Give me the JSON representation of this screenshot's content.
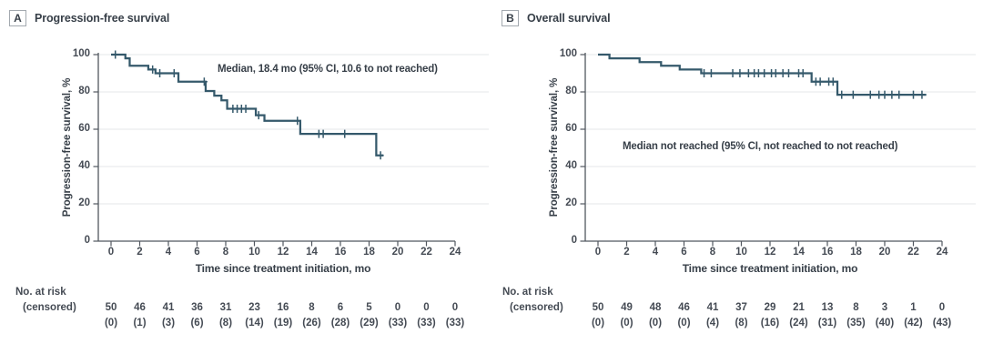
{
  "figure": {
    "background": "#ffffff",
    "curve_color": "#35596b",
    "axis_color": "#51575f",
    "grid_color": "#eaecee",
    "text_color": "#373f48",
    "risk_header_line1": "No. at risk",
    "risk_header_line2": "(censored)"
  },
  "chart_data": [
    {
      "type": "line",
      "subtype": "kaplan-meier-step",
      "panel_label": "A",
      "title": "Progression-free survival",
      "annotation": "Median, 18.4 mo (95% CI, 10.6 to not reached)",
      "xlabel": "Time since treatment initiation, mo",
      "ylabel": "Progression-free survival, %",
      "xlim": [
        0,
        24
      ],
      "ylim": [
        0,
        100
      ],
      "xticks": [
        0,
        2,
        4,
        6,
        8,
        10,
        12,
        14,
        16,
        18,
        20,
        22,
        24
      ],
      "yticks": [
        0,
        20,
        40,
        60,
        80,
        100
      ],
      "grid": "horizontal",
      "steps": [
        [
          0,
          100
        ],
        [
          1.0,
          98
        ],
        [
          1.3,
          94
        ],
        [
          2.6,
          92
        ],
        [
          3.1,
          90
        ],
        [
          4.7,
          85.5
        ],
        [
          6.6,
          80.5
        ],
        [
          7.2,
          78
        ],
        [
          7.7,
          75.5
        ],
        [
          8.1,
          71
        ],
        [
          10.1,
          67.5
        ],
        [
          10.7,
          64.5
        ],
        [
          13.2,
          57.5
        ],
        [
          18.5,
          46
        ]
      ],
      "curve_end": 19.0,
      "censor_marks": [
        [
          0.3,
          100
        ],
        [
          2.9,
          92
        ],
        [
          3.4,
          90
        ],
        [
          4.4,
          90
        ],
        [
          6.5,
          85.5
        ],
        [
          8.5,
          71
        ],
        [
          8.8,
          71
        ],
        [
          9.1,
          71
        ],
        [
          9.4,
          71
        ],
        [
          10.3,
          67.5
        ],
        [
          13.0,
          64.5
        ],
        [
          14.5,
          57.5
        ],
        [
          14.8,
          57.5
        ],
        [
          16.3,
          57.5
        ],
        [
          18.8,
          46
        ]
      ],
      "at_risk": [
        50,
        46,
        41,
        36,
        31,
        23,
        16,
        8,
        6,
        5,
        0,
        0,
        0
      ],
      "censored": [
        "(0)",
        "(1)",
        "(3)",
        "(6)",
        "(8)",
        "(14)",
        "(19)",
        "(26)",
        "(28)",
        "(29)",
        "(33)",
        "(33)",
        "(33)"
      ]
    },
    {
      "type": "line",
      "subtype": "kaplan-meier-step",
      "panel_label": "B",
      "title": "Overall survival",
      "annotation": "Median not reached (95% CI, not reached to not reached)",
      "xlabel": "Time since treatment initiation, mo",
      "ylabel": "Progression-free survival, %",
      "xlim": [
        0,
        24
      ],
      "ylim": [
        0,
        100
      ],
      "xticks": [
        0,
        2,
        4,
        6,
        8,
        10,
        12,
        14,
        16,
        18,
        20,
        22,
        24
      ],
      "yticks": [
        0,
        20,
        40,
        60,
        80,
        100
      ],
      "grid": "horizontal",
      "steps": [
        [
          0,
          100
        ],
        [
          0.8,
          98
        ],
        [
          2.9,
          96
        ],
        [
          4.4,
          94
        ],
        [
          5.7,
          92
        ],
        [
          7.2,
          90
        ],
        [
          14.9,
          85.5
        ],
        [
          16.7,
          78.5
        ]
      ],
      "curve_end": 22.9,
      "censor_marks": [
        [
          7.4,
          90
        ],
        [
          7.9,
          90
        ],
        [
          9.4,
          90
        ],
        [
          9.9,
          90
        ],
        [
          10.5,
          90
        ],
        [
          10.9,
          90
        ],
        [
          11.2,
          90
        ],
        [
          11.6,
          90
        ],
        [
          12.1,
          90
        ],
        [
          12.4,
          90
        ],
        [
          12.9,
          90
        ],
        [
          13.3,
          90
        ],
        [
          14.0,
          90
        ],
        [
          14.3,
          90
        ],
        [
          15.2,
          85.5
        ],
        [
          15.5,
          85.5
        ],
        [
          16.1,
          85.5
        ],
        [
          16.4,
          85.5
        ],
        [
          17.0,
          78.5
        ],
        [
          17.8,
          78.5
        ],
        [
          19.0,
          78.5
        ],
        [
          19.6,
          78.5
        ],
        [
          20.0,
          78.5
        ],
        [
          20.5,
          78.5
        ],
        [
          21.0,
          78.5
        ],
        [
          22.0,
          78.5
        ],
        [
          22.6,
          78.5
        ]
      ],
      "at_risk": [
        50,
        49,
        48,
        46,
        41,
        37,
        29,
        21,
        13,
        8,
        3,
        1,
        0
      ],
      "censored": [
        "(0)",
        "(0)",
        "(0)",
        "(0)",
        "(4)",
        "(8)",
        "(16)",
        "(24)",
        "(31)",
        "(35)",
        "(40)",
        "(42)",
        "(43)"
      ]
    }
  ]
}
